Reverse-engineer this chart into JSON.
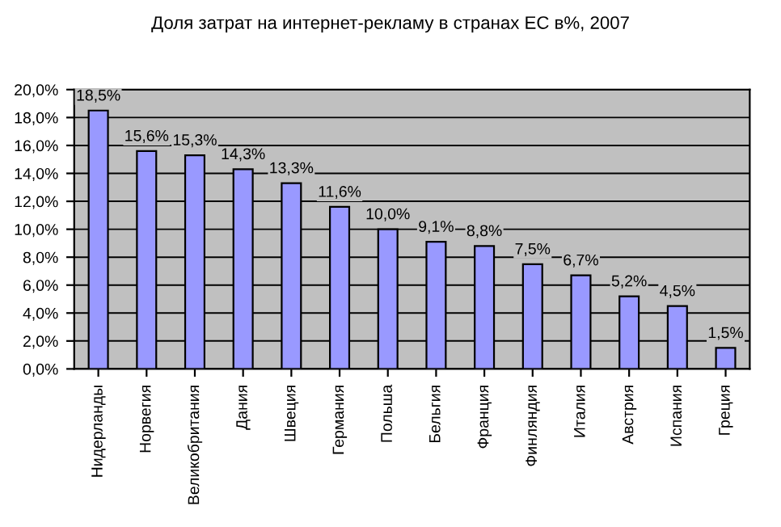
{
  "chart_data": {
    "type": "bar",
    "title": "Доля затрат на интернет-рекламу в странах ЕС в%, 2007",
    "categories": [
      "Нидерланды",
      "Норвегия",
      "Великобритания",
      "Дания",
      "Швеция",
      "Германия",
      "Польша",
      "Бельгия",
      "Франция",
      "Финляндия",
      "Италия",
      "Австрия",
      "Испания",
      "Греция"
    ],
    "values": [
      18.5,
      15.6,
      15.3,
      14.3,
      13.3,
      11.6,
      10.0,
      9.1,
      8.8,
      7.5,
      6.7,
      5.2,
      4.5,
      1.5
    ],
    "value_labels": [
      "18,5%",
      "15,6%",
      "15,3%",
      "14,3%",
      "13,3%",
      "11,6%",
      "10,0%",
      "9,1%",
      "8,8%",
      "7,5%",
      "6,7%",
      "5,2%",
      "4,5%",
      "1,5%"
    ],
    "color": "#9999ff",
    "ylim": [
      0,
      20
    ],
    "yticks": [
      {
        "value": 0,
        "label": "0,0%"
      },
      {
        "value": 2,
        "label": "2,0%"
      },
      {
        "value": 4,
        "label": "4,0%"
      },
      {
        "value": 6,
        "label": "6,0%"
      },
      {
        "value": 8,
        "label": "8,0%"
      },
      {
        "value": 10,
        "label": "10,0%"
      },
      {
        "value": 12,
        "label": "12,0%"
      },
      {
        "value": 14,
        "label": "14,0%"
      },
      {
        "value": 16,
        "label": "16,0%"
      },
      {
        "value": 18,
        "label": "18,0%"
      },
      {
        "value": 20,
        "label": "20,0%"
      }
    ],
    "grid": "y",
    "legend": false
  }
}
